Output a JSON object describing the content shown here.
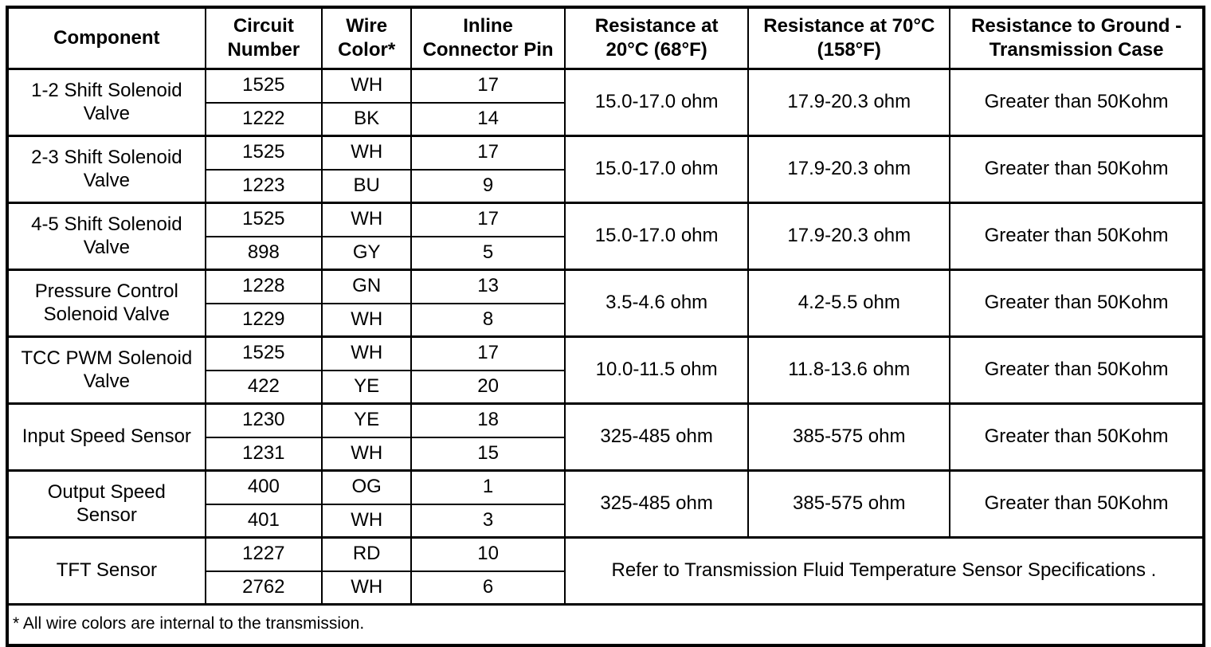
{
  "header": {
    "columns": [
      "Component",
      "Circuit\nNumber",
      "Wire\nColor*",
      "Inline\nConnector Pin",
      "Resistance at\n20°C (68°F)",
      "Resistance at 70°C\n(158°F)",
      "Resistance to Ground -\nTransmission Case"
    ]
  },
  "rows": [
    {
      "component": "1-2 Shift Solenoid\nValve",
      "circuits": [
        {
          "circuit_number": "1525",
          "wire_color": "WH",
          "pin": "17"
        },
        {
          "circuit_number": "1222",
          "wire_color": "BK",
          "pin": "14"
        }
      ],
      "resistance_20c": "15.0-17.0 ohm",
      "resistance_70c": "17.9-20.3 ohm",
      "resistance_ground": "Greater than 50Kohm"
    },
    {
      "component": "2-3 Shift Solenoid\nValve",
      "circuits": [
        {
          "circuit_number": "1525",
          "wire_color": "WH",
          "pin": "17"
        },
        {
          "circuit_number": "1223",
          "wire_color": "BU",
          "pin": "9"
        }
      ],
      "resistance_20c": "15.0-17.0 ohm",
      "resistance_70c": "17.9-20.3 ohm",
      "resistance_ground": "Greater than 50Kohm"
    },
    {
      "component": "4-5 Shift Solenoid\nValve",
      "circuits": [
        {
          "circuit_number": "1525",
          "wire_color": "WH",
          "pin": "17"
        },
        {
          "circuit_number": "898",
          "wire_color": "GY",
          "pin": "5"
        }
      ],
      "resistance_20c": "15.0-17.0 ohm",
      "resistance_70c": "17.9-20.3 ohm",
      "resistance_ground": "Greater than 50Kohm"
    },
    {
      "component": "Pressure Control\nSolenoid Valve",
      "circuits": [
        {
          "circuit_number": "1228",
          "wire_color": "GN",
          "pin": "13"
        },
        {
          "circuit_number": "1229",
          "wire_color": "WH",
          "pin": "8"
        }
      ],
      "resistance_20c": "3.5-4.6 ohm",
      "resistance_70c": "4.2-5.5 ohm",
      "resistance_ground": "Greater than 50Kohm"
    },
    {
      "component": "TCC PWM Solenoid\nValve",
      "circuits": [
        {
          "circuit_number": "1525",
          "wire_color": "WH",
          "pin": "17"
        },
        {
          "circuit_number": "422",
          "wire_color": "YE",
          "pin": "20"
        }
      ],
      "resistance_20c": "10.0-11.5 ohm",
      "resistance_70c": "11.8-13.6 ohm",
      "resistance_ground": "Greater than 50Kohm"
    },
    {
      "component": "Input Speed Sensor",
      "circuits": [
        {
          "circuit_number": "1230",
          "wire_color": "YE",
          "pin": "18"
        },
        {
          "circuit_number": "1231",
          "wire_color": "WH",
          "pin": "15"
        }
      ],
      "resistance_20c": "325-485 ohm",
      "resistance_70c": "385-575 ohm",
      "resistance_ground": "Greater than 50Kohm"
    },
    {
      "component": "Output Speed\nSensor",
      "circuits": [
        {
          "circuit_number": "400",
          "wire_color": "OG",
          "pin": "1"
        },
        {
          "circuit_number": "401",
          "wire_color": "WH",
          "pin": "3"
        }
      ],
      "resistance_20c": "325-485 ohm",
      "resistance_70c": "385-575 ohm",
      "resistance_ground": "Greater than 50Kohm"
    },
    {
      "component": "TFT Sensor",
      "circuits": [
        {
          "circuit_number": "1227",
          "wire_color": "RD",
          "pin": "10"
        },
        {
          "circuit_number": "2762",
          "wire_color": "WH",
          "pin": "6"
        }
      ],
      "note": "Refer to Transmission Fluid Temperature Sensor Specifications ."
    }
  ],
  "footnote": "* All wire colors are internal to the transmission."
}
